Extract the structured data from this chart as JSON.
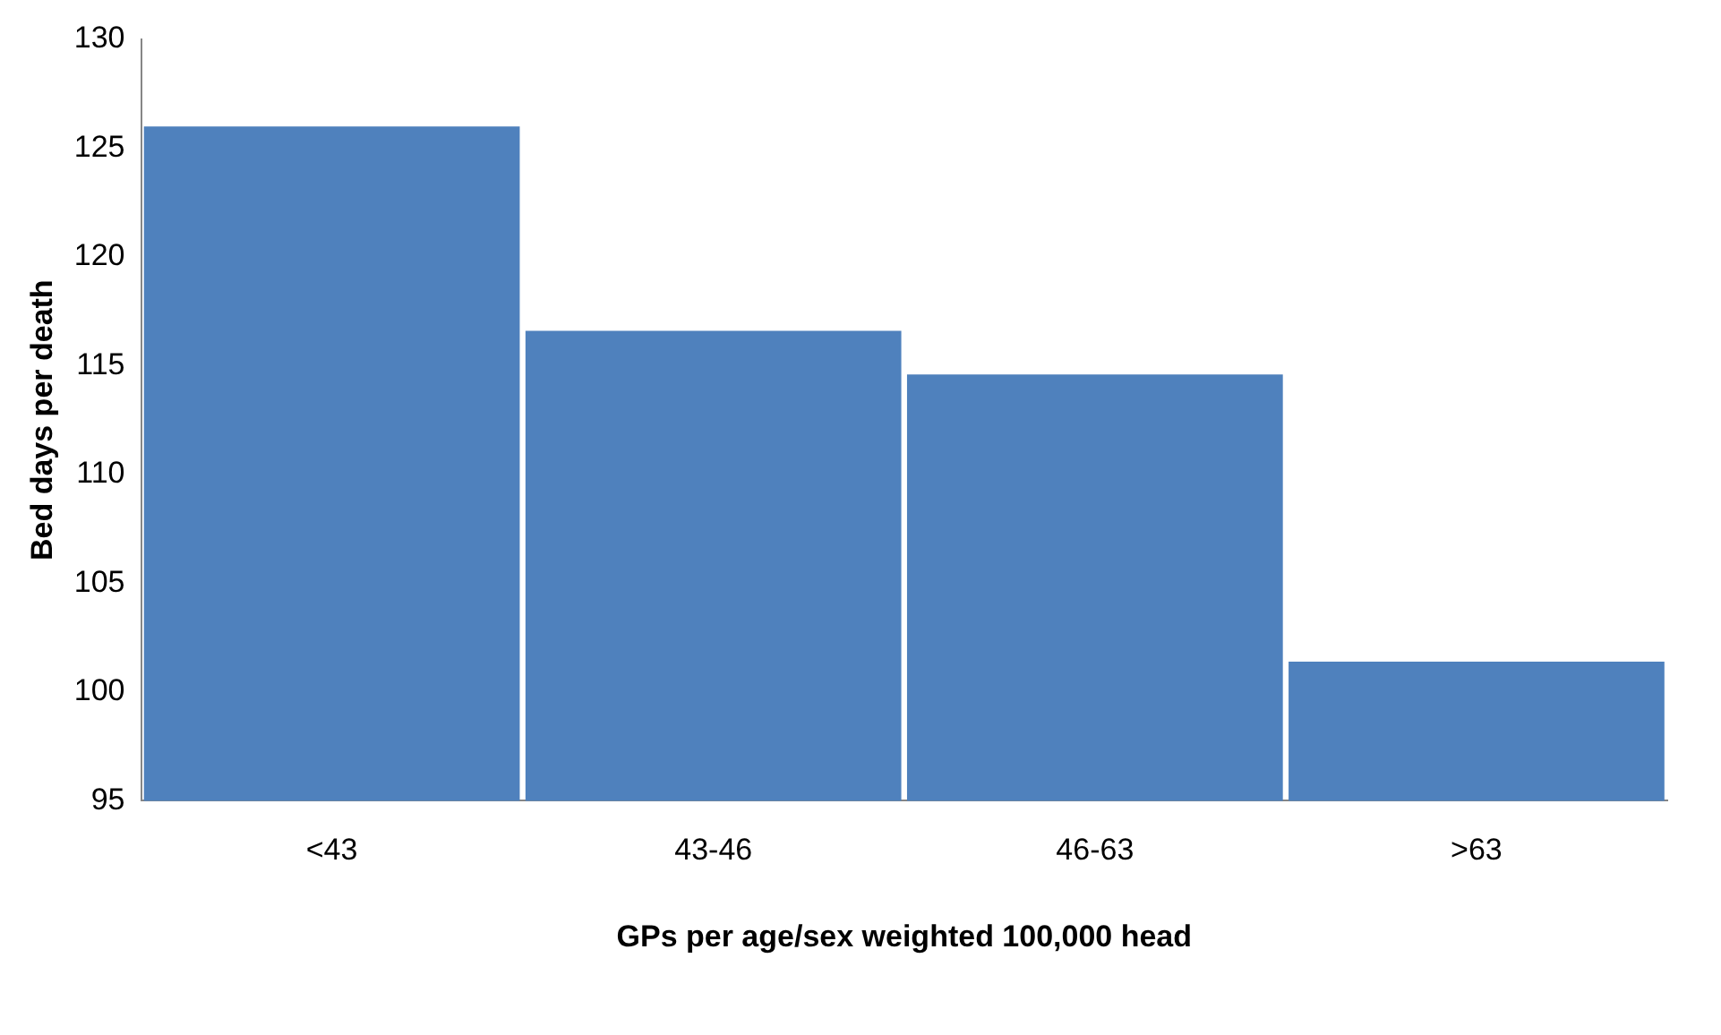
{
  "chart_data": {
    "type": "bar",
    "xlabel": "GPs per age/sex weighted 100,000 head",
    "ylabel": "Bed days per death",
    "categories": [
      "<43",
      "43-46",
      "46-63",
      ">63"
    ],
    "values": [
      126,
      116.6,
      114.6,
      101.4
    ],
    "color": "#4f81bd",
    "ylim": [
      95,
      130
    ],
    "yticks": [
      95,
      100,
      105,
      110,
      115,
      120,
      125,
      130
    ],
    "grid": false,
    "legend": false
  }
}
